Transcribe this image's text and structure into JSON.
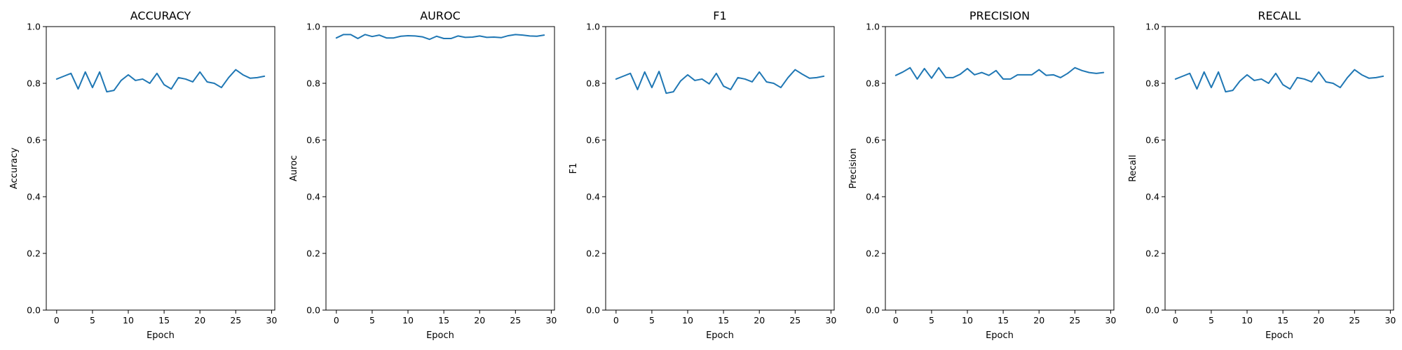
{
  "chart_data": [
    {
      "type": "line",
      "title": "ACCURACY",
      "xlabel": "Epoch",
      "ylabel": "Accuracy",
      "xlim": [
        -1.45,
        30.45
      ],
      "ylim": [
        0.0,
        1.0
      ],
      "xticks": [
        0,
        5,
        10,
        15,
        20,
        25,
        30
      ],
      "yticks": [
        0.0,
        0.2,
        0.4,
        0.6,
        0.8,
        1.0
      ],
      "grid": false,
      "series": [
        {
          "color": "#1f77b4",
          "x": [
            0,
            1,
            2,
            3,
            4,
            5,
            6,
            7,
            8,
            9,
            10,
            11,
            12,
            13,
            14,
            15,
            16,
            17,
            18,
            19,
            20,
            21,
            22,
            23,
            24,
            25,
            26,
            27,
            28,
            29
          ],
          "values": [
            0.815,
            0.825,
            0.835,
            0.78,
            0.84,
            0.785,
            0.84,
            0.77,
            0.775,
            0.81,
            0.83,
            0.81,
            0.815,
            0.8,
            0.835,
            0.795,
            0.78,
            0.82,
            0.815,
            0.805,
            0.84,
            0.805,
            0.8,
            0.785,
            0.82,
            0.848,
            0.83,
            0.818,
            0.82,
            0.825
          ]
        }
      ]
    },
    {
      "type": "line",
      "title": "AUROC",
      "xlabel": "Epoch",
      "ylabel": "Auroc",
      "xlim": [
        -1.45,
        30.45
      ],
      "ylim": [
        0.0,
        1.0
      ],
      "xticks": [
        0,
        5,
        10,
        15,
        20,
        25,
        30
      ],
      "yticks": [
        0.0,
        0.2,
        0.4,
        0.6,
        0.8,
        1.0
      ],
      "grid": false,
      "series": [
        {
          "color": "#1f77b4",
          "x": [
            0,
            1,
            2,
            3,
            4,
            5,
            6,
            7,
            8,
            9,
            10,
            11,
            12,
            13,
            14,
            15,
            16,
            17,
            18,
            19,
            20,
            21,
            22,
            23,
            24,
            25,
            26,
            27,
            28,
            29
          ],
          "values": [
            0.96,
            0.972,
            0.972,
            0.958,
            0.972,
            0.965,
            0.97,
            0.96,
            0.96,
            0.966,
            0.968,
            0.967,
            0.964,
            0.955,
            0.966,
            0.958,
            0.958,
            0.967,
            0.962,
            0.963,
            0.967,
            0.962,
            0.963,
            0.961,
            0.968,
            0.972,
            0.97,
            0.967,
            0.966,
            0.97
          ]
        }
      ]
    },
    {
      "type": "line",
      "title": "F1",
      "xlabel": "Epoch",
      "ylabel": "F1",
      "xlim": [
        -1.45,
        30.45
      ],
      "ylim": [
        0.0,
        1.0
      ],
      "xticks": [
        0,
        5,
        10,
        15,
        20,
        25,
        30
      ],
      "yticks": [
        0.0,
        0.2,
        0.4,
        0.6,
        0.8,
        1.0
      ],
      "grid": false,
      "series": [
        {
          "color": "#1f77b4",
          "x": [
            0,
            1,
            2,
            3,
            4,
            5,
            6,
            7,
            8,
            9,
            10,
            11,
            12,
            13,
            14,
            15,
            16,
            17,
            18,
            19,
            20,
            21,
            22,
            23,
            24,
            25,
            26,
            27,
            28,
            29
          ],
          "values": [
            0.815,
            0.825,
            0.835,
            0.778,
            0.84,
            0.785,
            0.842,
            0.765,
            0.77,
            0.808,
            0.83,
            0.81,
            0.815,
            0.798,
            0.835,
            0.79,
            0.778,
            0.82,
            0.815,
            0.805,
            0.84,
            0.805,
            0.8,
            0.785,
            0.82,
            0.848,
            0.832,
            0.818,
            0.82,
            0.825
          ]
        }
      ]
    },
    {
      "type": "line",
      "title": "PRECISION",
      "xlabel": "Epoch",
      "ylabel": "Precision",
      "xlim": [
        -1.45,
        30.45
      ],
      "ylim": [
        0.0,
        1.0
      ],
      "xticks": [
        0,
        5,
        10,
        15,
        20,
        25,
        30
      ],
      "yticks": [
        0.0,
        0.2,
        0.4,
        0.6,
        0.8,
        1.0
      ],
      "grid": false,
      "series": [
        {
          "color": "#1f77b4",
          "x": [
            0,
            1,
            2,
            3,
            4,
            5,
            6,
            7,
            8,
            9,
            10,
            11,
            12,
            13,
            14,
            15,
            16,
            17,
            18,
            19,
            20,
            21,
            22,
            23,
            24,
            25,
            26,
            27,
            28,
            29
          ],
          "values": [
            0.828,
            0.84,
            0.855,
            0.815,
            0.852,
            0.818,
            0.855,
            0.82,
            0.82,
            0.832,
            0.852,
            0.83,
            0.838,
            0.828,
            0.845,
            0.815,
            0.815,
            0.83,
            0.83,
            0.83,
            0.848,
            0.828,
            0.83,
            0.82,
            0.835,
            0.855,
            0.845,
            0.838,
            0.835,
            0.838
          ]
        }
      ]
    },
    {
      "type": "line",
      "title": "RECALL",
      "xlabel": "Epoch",
      "ylabel": "Recall",
      "xlim": [
        -1.45,
        30.45
      ],
      "ylim": [
        0.0,
        1.0
      ],
      "xticks": [
        0,
        5,
        10,
        15,
        20,
        25,
        30
      ],
      "yticks": [
        0.0,
        0.2,
        0.4,
        0.6,
        0.8,
        1.0
      ],
      "grid": false,
      "series": [
        {
          "color": "#1f77b4",
          "x": [
            0,
            1,
            2,
            3,
            4,
            5,
            6,
            7,
            8,
            9,
            10,
            11,
            12,
            13,
            14,
            15,
            16,
            17,
            18,
            19,
            20,
            21,
            22,
            23,
            24,
            25,
            26,
            27,
            28,
            29
          ],
          "values": [
            0.815,
            0.825,
            0.835,
            0.78,
            0.84,
            0.785,
            0.84,
            0.77,
            0.775,
            0.808,
            0.83,
            0.81,
            0.815,
            0.8,
            0.835,
            0.795,
            0.78,
            0.82,
            0.815,
            0.805,
            0.84,
            0.805,
            0.8,
            0.785,
            0.82,
            0.848,
            0.83,
            0.818,
            0.82,
            0.825
          ]
        }
      ]
    }
  ]
}
